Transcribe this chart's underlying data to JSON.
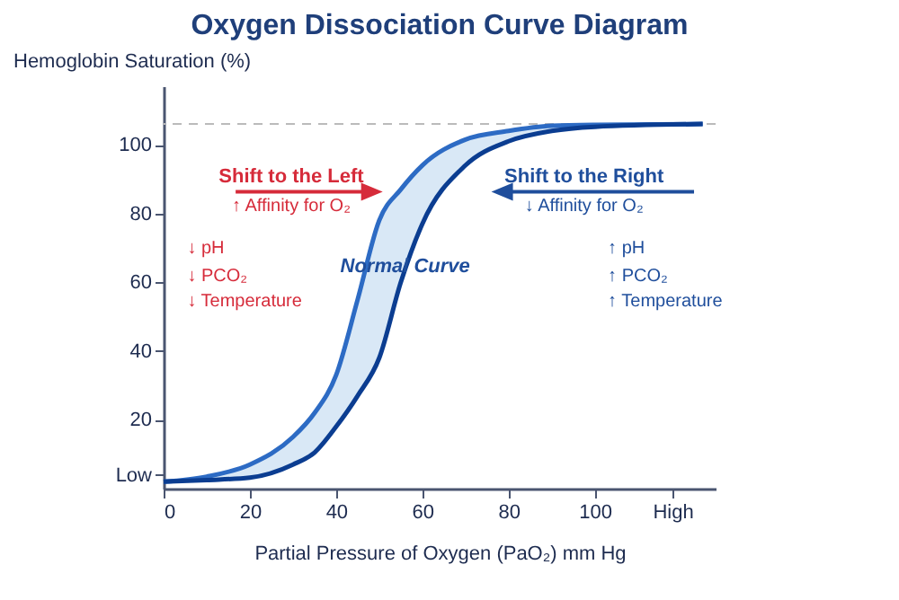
{
  "chart_data": {
    "type": "line",
    "title": "Oxygen Dissociation Curve Diagram",
    "xlabel": "Partial Pressure of Oxygen (PaO₂) mm Hg",
    "ylabel": "Hemoglobin Saturation (%)",
    "x": [
      0,
      10,
      20,
      30,
      35,
      40,
      45,
      50,
      55,
      60,
      70,
      80,
      90,
      100,
      125
    ],
    "series": [
      {
        "color": "#2d6bc4",
        "values": [
          2,
          3.5,
          7,
          15,
          22,
          33,
          55,
          78,
          87,
          94,
          101.5,
          104,
          105.5,
          105.8,
          106
        ],
        "lower": [
          2,
          2.5,
          3.2,
          7,
          10.5,
          18,
          27,
          38,
          60,
          77,
          94,
          101,
          104,
          105.2,
          106
        ],
        "upper": [
          2,
          3.5,
          7,
          15,
          22,
          33,
          55,
          78,
          87,
          94,
          101.5,
          104,
          105.5,
          105.8,
          106
        ]
      },
      {
        "color": "#0b3d91",
        "values": [
          2,
          2.5,
          3.2,
          7,
          10.5,
          18,
          27,
          38,
          60,
          77,
          94,
          101,
          104,
          105.2,
          106
        ]
      }
    ],
    "xlim": [
      0,
      128
    ],
    "ylim": [
      0,
      117
    ],
    "xticks": [
      0,
      20,
      40,
      60,
      80,
      100,
      {
        "value": 118,
        "label": "High"
      }
    ],
    "yticks": [
      {
        "value": 4,
        "label": "Low"
      },
      20,
      40,
      60,
      80,
      100
    ],
    "ref_lines": [
      {
        "axis": "y",
        "value": 106,
        "label": null,
        "color": "#bbbbbb",
        "line_style": "dashed"
      }
    ],
    "annotations": [
      "Shift to the Left",
      "↑ Affinity for O₂",
      "↓ pH",
      "↓ PCO₂",
      "↓ Temperature",
      "Normal Curve",
      "Shift to the Right",
      "↓ Affinity for O₂",
      "↑ pH",
      "↑ PCO₂",
      "↑ Temperature"
    ],
    "grid": false,
    "legend": false,
    "line_style": "solid",
    "marker": "none"
  }
}
